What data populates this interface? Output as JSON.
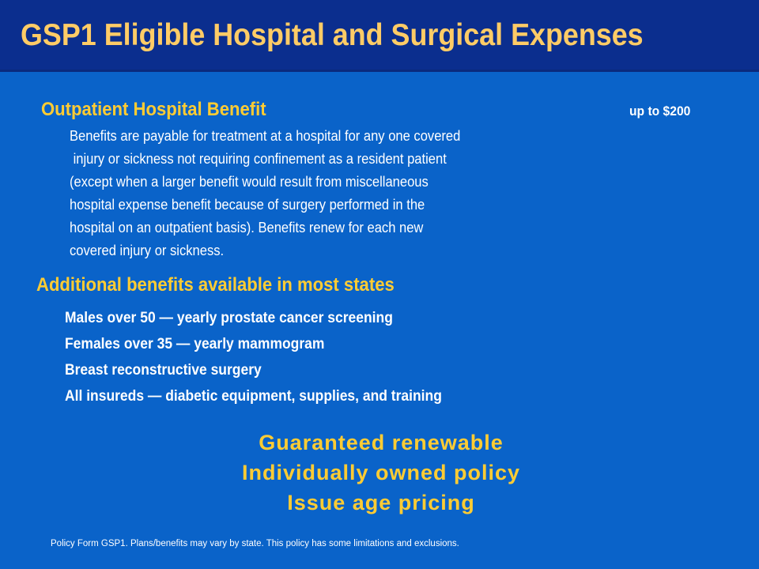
{
  "header": {
    "title": "GSP1 Eligible Hospital and Surgical Expenses",
    "background_color": "#0b2e8e",
    "title_color": "#ffcc66"
  },
  "outpatient": {
    "heading": "Outpatient Hospital Benefit",
    "amount": "up to $200",
    "body_lines": [
      "Benefits are payable for treatment at a hospital for any one covered",
      " injury or sickness not requiring confinement as a resident patient",
      "(except when a larger benefit would result from miscellaneous",
      "hospital expense benefit because of surgery performed in the",
      "hospital on an outpatient basis). Benefits renew for each new",
      "covered injury or sickness."
    ]
  },
  "additional": {
    "heading": "Additional benefits available in most states",
    "items": [
      "Males over 50 — yearly prostate cancer screening",
      "Females over 35 — yearly mammogram",
      "Breast reconstructive surgery",
      "All insureds — diabetic equipment, supplies, and training"
    ]
  },
  "closing": {
    "lines": [
      "Guaranteed renewable",
      "Individually owned policy",
      "Issue age pricing"
    ]
  },
  "footnote": "Policy Form GSP1.  Plans/benefits may vary by state.  This policy has some limitations and exclusions.",
  "colors": {
    "background": "#0a63c9",
    "accent": "#ffcc33",
    "text": "#ffffff"
  }
}
